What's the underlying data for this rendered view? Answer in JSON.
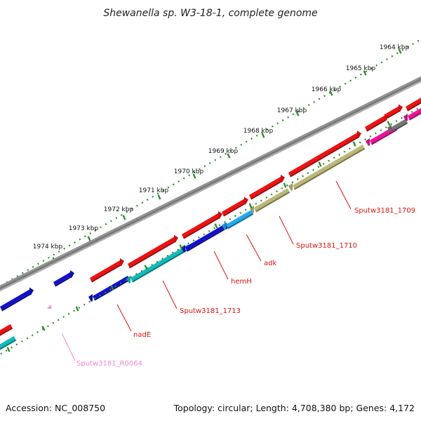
{
  "title": "Shewanella sp. W3-18-1, complete genome",
  "footer": {
    "accession": "Accession: NC_008750",
    "summary": "Topology: circular; Length: 4,708,380 bp; Genes: 4,172"
  },
  "colors": {
    "backbone": "#808080",
    "scale_dots": "#2e8b2e",
    "red": "#ee1111",
    "blue": "#1111cc",
    "cyan": "#11bbbb",
    "sky": "#22aaee",
    "olive": "#bbb877",
    "magenta": "#ee1199",
    "gray": "#777777",
    "pink": "#ee99cc",
    "label_red": "#dd1111",
    "label_pink": "#ee88cc"
  },
  "scale_ticks": [
    {
      "label": "1964 kbp"
    },
    {
      "label": "1965 kbp"
    },
    {
      "label": "1966 kbp"
    },
    {
      "label": "1967 kbp"
    },
    {
      "label": "1968 kbp"
    },
    {
      "label": "1969 kbp"
    },
    {
      "label": "1970 kbp"
    },
    {
      "label": "1971 kbp"
    },
    {
      "label": "1972 kbp"
    },
    {
      "label": "1973 kbp"
    },
    {
      "label": "1974 kbp"
    }
  ],
  "gene_labels": [
    {
      "text": "Sputw3181_1709",
      "color": "label_red"
    },
    {
      "text": "Sputw3181_1710",
      "color": "label_red"
    },
    {
      "text": "adk",
      "color": "label_red"
    },
    {
      "text": "hemH",
      "color": "label_red"
    },
    {
      "text": "Sputw3181_1713",
      "color": "label_red"
    },
    {
      "text": "nadE",
      "color": "label_red"
    },
    {
      "text": "Sputw3181_R0064",
      "color": "label_pink"
    }
  ]
}
